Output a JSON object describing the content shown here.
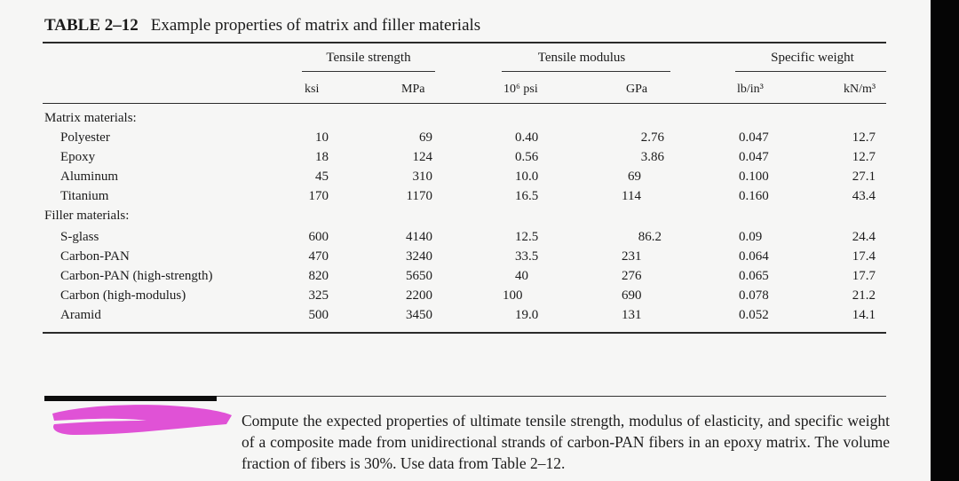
{
  "table": {
    "number": "TABLE 2–12",
    "caption": "Example properties of matrix and filler materials",
    "groups": [
      "Tensile strength",
      "Tensile modulus",
      "Specific weight"
    ],
    "units": [
      "ksi",
      "MPa",
      "10⁶ psi",
      "GPa",
      "lb/in³",
      "kN/m³"
    ],
    "sections": [
      {
        "label": "Matrix materials:",
        "rows": [
          {
            "name": "Polyester",
            "values": [
              "10",
              "69",
              "0.40",
              "2.76",
              "0.047",
              "12.7"
            ]
          },
          {
            "name": "Epoxy",
            "values": [
              "18",
              "124",
              "0.56",
              "3.86",
              "0.047",
              "12.7"
            ]
          },
          {
            "name": "Aluminum",
            "values": [
              "45",
              "310",
              "10.0",
              "69",
              "0.100",
              "27.1"
            ]
          },
          {
            "name": "Titanium",
            "values": [
              "170",
              "1170",
              "16.5",
              "114",
              "0.160",
              "43.4"
            ]
          }
        ]
      },
      {
        "label": "Filler materials:",
        "rows": [
          {
            "name": "S-glass",
            "values": [
              "600",
              "4140",
              "12.5",
              "86.2",
              "0.09",
              "24.4"
            ]
          },
          {
            "name": "Carbon-PAN",
            "values": [
              "470",
              "3240",
              "33.5",
              "231",
              "0.064",
              "17.4"
            ]
          },
          {
            "name": "Carbon-PAN (high-strength)",
            "values": [
              "820",
              "5650",
              "40",
              "276",
              "0.065",
              "17.7"
            ]
          },
          {
            "name": "Carbon (high-modulus)",
            "values": [
              "325",
              "2200",
              "100",
              "690",
              "0.078",
              "21.2"
            ]
          },
          {
            "name": "Aramid",
            "values": [
              "500",
              "3450",
              "19.0",
              "131",
              "0.052",
              "14.1"
            ]
          }
        ]
      }
    ]
  },
  "problem": {
    "text": "Compute the expected properties of ultimate tensile strength, modulus of elasticity, and specific weight of a composite made from unidirectional strands of carbon-PAN fibers in an epoxy matrix. The volume fraction of fibers is 30%. Use data from Table 2–12."
  },
  "colors": {
    "page": "#f6f6f5",
    "redaction": "#e052d6",
    "edge": "#050505"
  }
}
